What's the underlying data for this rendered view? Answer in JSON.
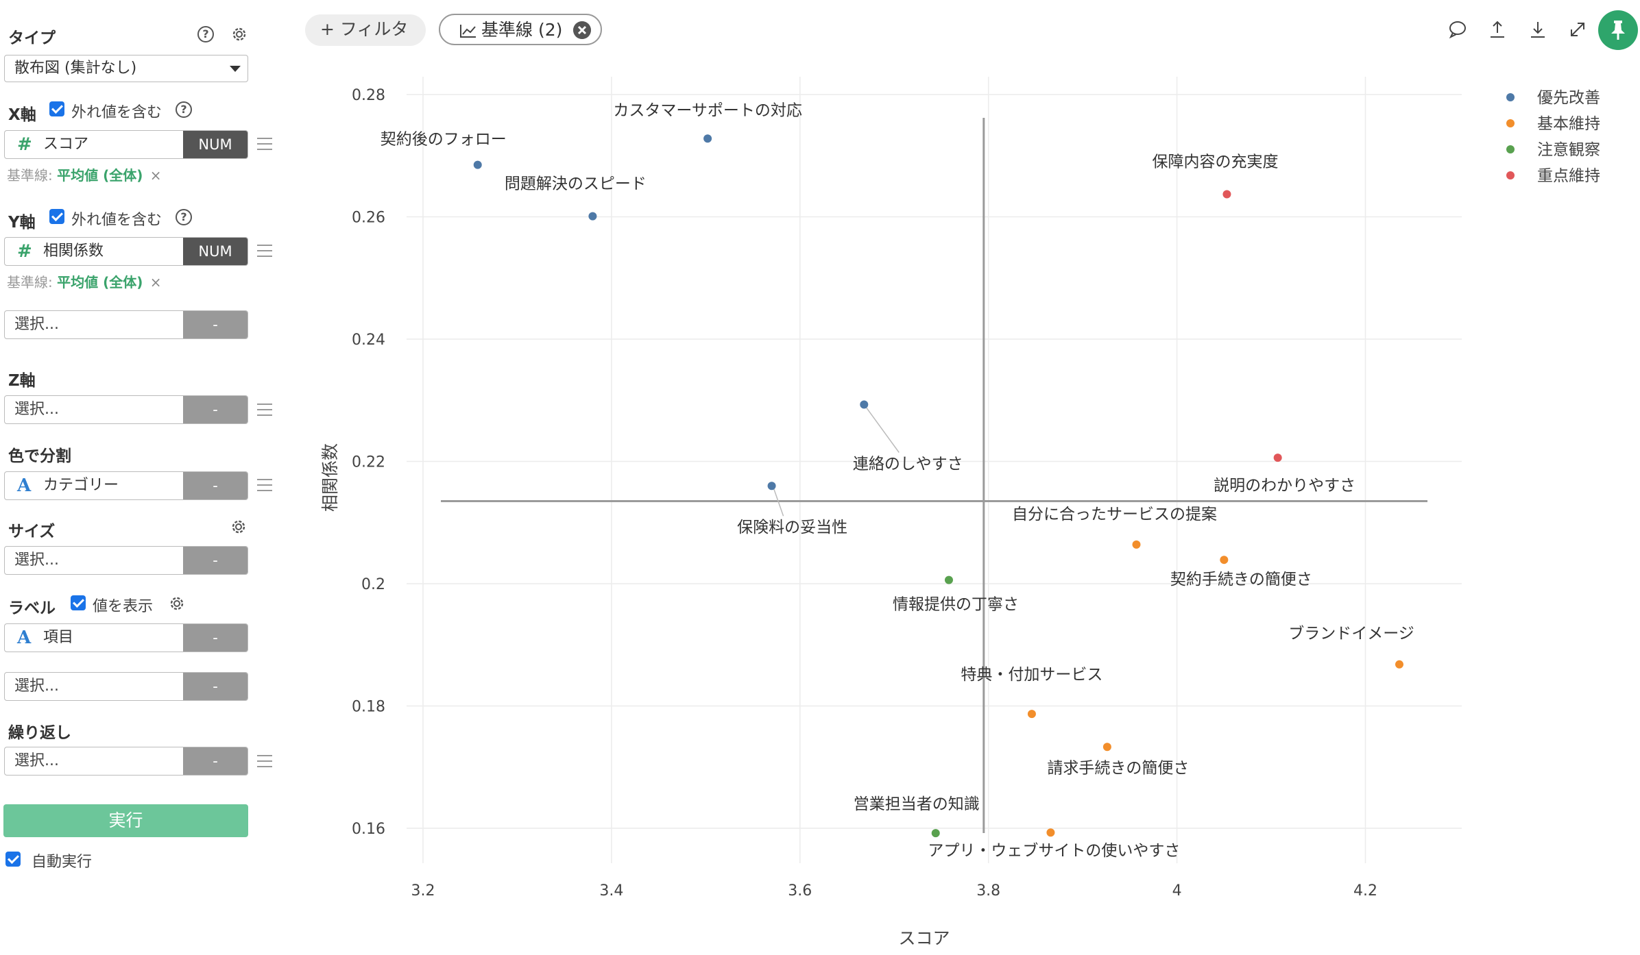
{
  "sidebar": {
    "type_title": "タイプ",
    "type_value": "散布図 (集計なし)",
    "x_axis": {
      "title": "X軸",
      "outlier_label": "外れ値を含む",
      "field_name": "スコア",
      "field_type": "NUM",
      "ref_prefix": "基準線:",
      "ref_value": "平均値 (全体)",
      "ref_remove": "×"
    },
    "y_axis": {
      "title": "Y軸",
      "outlier_label": "外れ値を含む",
      "field_name": "相関係数",
      "field_type": "NUM",
      "ref_prefix": "基準線:",
      "ref_value": "平均値 (全体)",
      "ref_remove": "×",
      "extra_placeholder": "選択...",
      "extra_type": "-"
    },
    "z_axis": {
      "title": "Z軸",
      "placeholder": "選択...",
      "type": "-"
    },
    "color": {
      "title": "色で分割",
      "field_name": "カテゴリー",
      "type": "-"
    },
    "size": {
      "title": "サイズ",
      "placeholder": "選択...",
      "type": "-"
    },
    "label": {
      "title": "ラベル",
      "show_value": "値を表示",
      "field_name": "項目",
      "type": "-",
      "extra_placeholder": "選択...",
      "extra_type": "-"
    },
    "repeat": {
      "title": "繰り返し",
      "placeholder": "選択...",
      "type": "-"
    },
    "run_button": "実行",
    "auto_run": "自動実行"
  },
  "toolbar": {
    "filter_label": "+ フィルタ",
    "baseline_label": "基準線 (2)",
    "icons": [
      "comment-icon",
      "upload-icon",
      "download-icon",
      "expand-icon",
      "pin-icon"
    ]
  },
  "chart_data": {
    "type": "scatter",
    "xlabel": "スコア",
    "ylabel": "相関係数",
    "xlim": [
      3.17,
      4.32
    ],
    "ylim": [
      0.151,
      0.283
    ],
    "xticks": [
      3.2,
      3.4,
      3.6,
      3.8,
      4,
      4.2
    ],
    "xtick_labels": [
      "3.2",
      "3.4",
      "3.6",
      "3.8",
      "4",
      "4.2"
    ],
    "yticks": [
      0.16,
      0.18,
      0.2,
      0.22,
      0.24,
      0.26,
      0.28
    ],
    "ytick_labels": [
      "0.16",
      "0.18",
      "0.2",
      "0.22",
      "0.24",
      "0.26",
      "0.28"
    ],
    "grid": true,
    "legend_position": "top-right",
    "reference_lines": {
      "x": 3.795,
      "y": 0.2135
    },
    "series": [
      {
        "name": "優先改善",
        "color": "#4e79a7",
        "points": [
          {
            "label": "契約後のフォロー",
            "x": 3.258,
            "y": 0.2685
          },
          {
            "label": "カスタマーサポートの対応",
            "x": 3.502,
            "y": 0.2728
          },
          {
            "label": "問題解決のスピード",
            "x": 3.38,
            "y": 0.2601
          },
          {
            "label": "連絡のしやすさ",
            "x": 3.668,
            "y": 0.2293
          },
          {
            "label": "保険料の妥当性",
            "x": 3.57,
            "y": 0.216
          }
        ]
      },
      {
        "name": "基本維持",
        "color": "#f28e2b",
        "points": [
          {
            "label": "自分に合ったサービスの提案",
            "x": 3.957,
            "y": 0.2064
          },
          {
            "label": "契約手続きの簡便さ",
            "x": 4.05,
            "y": 0.2039
          },
          {
            "label": "ブランドイメージ",
            "x": 4.236,
            "y": 0.1868
          },
          {
            "label": "特典・付加サービス",
            "x": 3.846,
            "y": 0.1787
          },
          {
            "label": "請求手続きの簡便さ",
            "x": 3.926,
            "y": 0.1733
          },
          {
            "label": "アプリ・ウェブサイトの使いやすさ",
            "x": 3.866,
            "y": 0.1593
          }
        ]
      },
      {
        "name": "注意観察",
        "color": "#59a14f",
        "points": [
          {
            "label": "情報提供の丁寧さ",
            "x": 3.758,
            "y": 0.2006
          },
          {
            "label": "営業担当者の知識",
            "x": 3.744,
            "y": 0.1592
          }
        ]
      },
      {
        "name": "重点維持",
        "color": "#e15759",
        "points": [
          {
            "label": "保障内容の充実度",
            "x": 4.053,
            "y": 0.2637
          },
          {
            "label": "説明のわかりやすさ",
            "x": 4.107,
            "y": 0.2206
          }
        ]
      }
    ]
  }
}
